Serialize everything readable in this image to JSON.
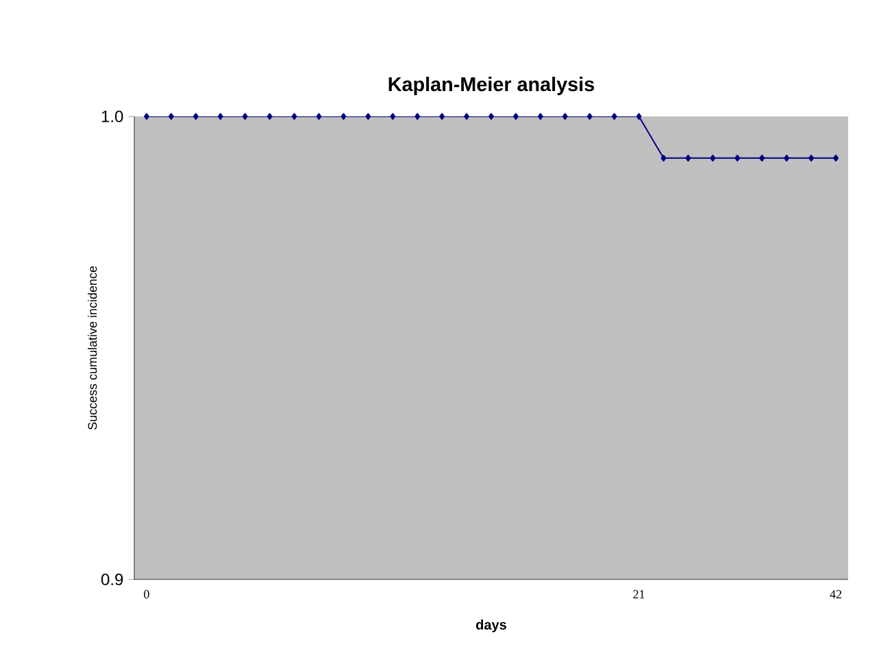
{
  "chart_data": {
    "type": "line",
    "title": "Kaplan-Meier analysis",
    "xlabel": "days",
    "ylabel": "Success cumulative incidence",
    "categories": [
      "0",
      null,
      null,
      null,
      null,
      null,
      null,
      null,
      null,
      null,
      null,
      null,
      null,
      null,
      null,
      null,
      null,
      null,
      null,
      null,
      "21",
      null,
      null,
      null,
      null,
      null,
      null,
      null,
      "42"
    ],
    "series": [
      {
        "color": "#000080",
        "values": [
          1,
          1,
          1,
          1,
          1,
          1,
          1,
          1,
          1,
          1,
          1,
          1,
          1,
          1,
          1,
          1,
          1,
          1,
          1,
          1,
          1,
          0.991,
          0.991,
          0.991,
          0.991,
          0.991,
          0.991,
          0.991,
          0.991
        ]
      }
    ],
    "ylim": [
      0.9,
      1.0
    ],
    "yticks": [
      {
        "value": 0.9,
        "label": "0.9"
      },
      {
        "value": 1.0,
        "label": "1.0"
      }
    ],
    "marker": "diamond",
    "grid": false
  }
}
